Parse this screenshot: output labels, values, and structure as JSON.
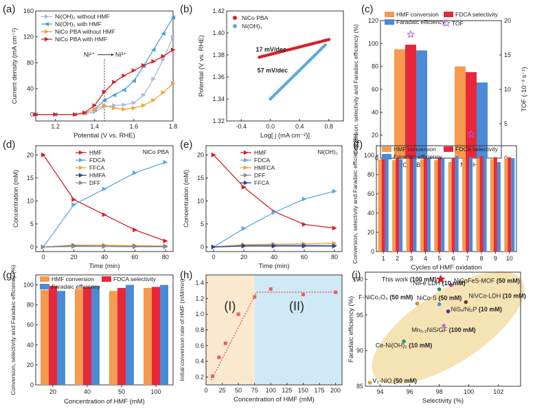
{
  "colors": {
    "conv": "#f59a4e",
    "sel": "#e8283a",
    "fe": "#4b8ad6",
    "red": "#d61f26",
    "blue": "#5aa9e0",
    "purple": "#b05bd0",
    "orange": "#f0a23a",
    "gray": "#7f8f9f",
    "navy": "#2b3f8f",
    "shade1": "#fbe9cf",
    "shade2": "#cfe9f6",
    "ellipse": "#f6e3b4"
  },
  "chart_data": [
    {
      "panel": "(a)",
      "type": "line",
      "xlabel": "Potential (V vs. RHE)",
      "ylabel": "Current density (mA cm⁻²)",
      "xlim": [
        1.1,
        1.8
      ],
      "ylim": [
        -10,
        160
      ],
      "xticks": [
        "1.2",
        "1.4",
        "1.6",
        "1.8"
      ],
      "yticks": [
        "0",
        "40",
        "80",
        "120",
        "160"
      ],
      "annotations": [
        "Ni²⁺",
        "Ni³⁺"
      ],
      "series": [
        {
          "name": "Ni(OH)₂ without HMF",
          "color": "#a9b6e6",
          "marker": ">",
          "x": [
            1.1,
            1.2,
            1.3,
            1.35,
            1.4,
            1.45,
            1.5,
            1.55,
            1.6,
            1.65,
            1.7,
            1.75,
            1.8
          ],
          "y": [
            0,
            0,
            0,
            1,
            4,
            12,
            14,
            15,
            18,
            30,
            55,
            85,
            120
          ]
        },
        {
          "name": "Ni(OH)₂ with HMF",
          "color": "#4aa0d8",
          "marker": "<",
          "x": [
            1.1,
            1.2,
            1.3,
            1.35,
            1.4,
            1.45,
            1.5,
            1.55,
            1.6,
            1.65,
            1.7,
            1.75,
            1.8
          ],
          "y": [
            0,
            0,
            0,
            2,
            8,
            22,
            30,
            38,
            52,
            75,
            100,
            125,
            150
          ]
        },
        {
          "name": "NiCo PBA without HMF",
          "color": "#f0a23a",
          "marker": ">",
          "x": [
            1.1,
            1.2,
            1.3,
            1.35,
            1.4,
            1.45,
            1.5,
            1.55,
            1.6,
            1.65,
            1.7,
            1.75,
            1.8
          ],
          "y": [
            0,
            0,
            0,
            2,
            8,
            14,
            10,
            8,
            10,
            14,
            22,
            34,
            48
          ]
        },
        {
          "name": "NiCo PBA with HMF",
          "color": "#d61f26",
          "marker": ">",
          "x": [
            1.1,
            1.2,
            1.3,
            1.35,
            1.4,
            1.45,
            1.5,
            1.55,
            1.6,
            1.65,
            1.7,
            1.75,
            1.8
          ],
          "y": [
            0,
            0,
            0,
            3,
            14,
            35,
            50,
            60,
            68,
            76,
            82,
            90,
            100
          ]
        }
      ]
    },
    {
      "panel": "(b)",
      "type": "line",
      "xlabel": "Log[ j (mA cm⁻²)]",
      "ylabel": "Potential (V vs. RHE)",
      "xlim": [
        -0.6,
        1.0
      ],
      "ylim": [
        1.32,
        1.42
      ],
      "xticks": [
        "-0.4",
        "0.0",
        "0.4",
        "0.8"
      ],
      "yticks": [
        "1.32",
        "1.34",
        "1.36",
        "1.38",
        "1.40",
        "1.42"
      ],
      "series": [
        {
          "name": "NiCo PBA",
          "color": "#d61f26",
          "label": "17 mV/dec",
          "x": [
            -0.15,
            0.8
          ],
          "y": [
            1.378,
            1.394
          ]
        },
        {
          "name": "Ni(OH)₂",
          "color": "#5aa9e0",
          "label": "57 mV/dec",
          "x": [
            0.0,
            0.75
          ],
          "y": [
            1.34,
            1.389
          ]
        }
      ]
    },
    {
      "panel": "(c)",
      "type": "bar",
      "categories": [
        "NiCo PBA",
        "Ni(OH)₂"
      ],
      "ylabel": "Conversion, selectivity and Faradaic efficiency (%)",
      "y2label": "TOF (·10⁻³ s⁻¹)",
      "ylim": [
        0,
        120
      ],
      "y2lim": [
        0,
        20
      ],
      "yticks": [
        "0",
        "20",
        "40",
        "60",
        "80",
        "100",
        "120"
      ],
      "y2ticks": [
        "0",
        "5",
        "10",
        "15",
        "20"
      ],
      "legend": [
        "HMF conversion",
        "FDCA selectivity",
        "Faradaic efficiency",
        "TOF"
      ],
      "series": [
        {
          "name": "HMF conversion",
          "values": [
            95,
            80
          ]
        },
        {
          "name": "FDCA selectivity",
          "values": [
            99,
            75
          ]
        },
        {
          "name": "Faradaic efficiency",
          "values": [
            94,
            66
          ]
        }
      ],
      "tof": [
        18,
        3.5
      ]
    },
    {
      "panel": "(d)",
      "type": "line",
      "title": "NiCo PBA",
      "xlabel": "Time (min)",
      "ylabel": "Concentration (mM)",
      "xlim": [
        -5,
        85
      ],
      "ylim": [
        -1,
        22
      ],
      "xticks": [
        "0",
        "20",
        "40",
        "60",
        "80"
      ],
      "yticks": [
        "0",
        "5",
        "10",
        "15",
        "20"
      ],
      "x": [
        0,
        20,
        40,
        60,
        80
      ],
      "series": [
        {
          "name": "HMF",
          "color": "#d61f26",
          "marker": ">",
          "values": [
            20,
            10.3,
            7,
            3.7,
            1.3
          ]
        },
        {
          "name": "FDCA",
          "color": "#5aa9e0",
          "marker": ">",
          "values": [
            0,
            9.2,
            12.6,
            16.1,
            18.4
          ]
        },
        {
          "name": "FFCA",
          "color": "#f0a23a",
          "marker": ">",
          "values": [
            0,
            0.4,
            0.4,
            0.3,
            0.2
          ]
        },
        {
          "name": "HMFA",
          "color": "#2b3f8f",
          "marker": ">",
          "values": [
            0,
            0.2,
            0.15,
            0.1,
            0.1
          ]
        },
        {
          "name": "DFF",
          "color": "#7f8f9f",
          "marker": ">",
          "values": [
            0,
            0.1,
            0.1,
            0.05,
            0.05
          ]
        }
      ]
    },
    {
      "panel": "(e)",
      "type": "line",
      "title": "Ni(OH)₂",
      "xlabel": "Time (min)",
      "ylabel": "Concentration (mM)",
      "xlim": [
        -5,
        85
      ],
      "ylim": [
        -1,
        22
      ],
      "xticks": [
        "0",
        "20",
        "40",
        "60",
        "80"
      ],
      "yticks": [
        "0",
        "5",
        "10",
        "15",
        "20"
      ],
      "x": [
        0,
        20,
        40,
        60,
        80
      ],
      "series": [
        {
          "name": "HMF",
          "color": "#d61f26",
          "marker": ">",
          "values": [
            20,
            13,
            7.7,
            4.9,
            4.1
          ]
        },
        {
          "name": "FDCA",
          "color": "#5aa9e0",
          "marker": ">",
          "values": [
            0,
            4,
            7.5,
            10.4,
            12.1
          ]
        },
        {
          "name": "HMFCA",
          "color": "#f0a23a",
          "marker": ">",
          "values": [
            0,
            0.5,
            0.6,
            0.7,
            0.8
          ]
        },
        {
          "name": "DFF",
          "color": "#7f8f9f",
          "marker": ">",
          "values": [
            0,
            0.3,
            0.4,
            0.4,
            0.3
          ]
        },
        {
          "name": "FFCA",
          "color": "#2b3f8f",
          "marker": ">",
          "values": [
            0,
            0.2,
            0.2,
            0.2,
            0.2
          ]
        }
      ]
    },
    {
      "panel": "(f)",
      "type": "bar",
      "categories": [
        "1",
        "2",
        "3",
        "4",
        "5",
        "6",
        "7",
        "8",
        "9",
        "10"
      ],
      "xlabel": "Cycles of  HMF oxidation",
      "ylabel": "Conversion, selectivity and Faradaic efficiency (%)",
      "ylim": [
        0,
        110
      ],
      "yticks": [
        "0",
        "20",
        "40",
        "60",
        "80",
        "100"
      ],
      "legend": [
        "HMF conversion",
        "FDCA selectivity",
        "Faradaic efficiency"
      ],
      "series": [
        {
          "name": "HMF conversion",
          "values": [
            96,
            95,
            98,
            96,
            95,
            93,
            97,
            97,
            96,
            97
          ]
        },
        {
          "name": "FDCA selectivity",
          "values": [
            98,
            97,
            100,
            98,
            98,
            97,
            99,
            99,
            98,
            98
          ]
        },
        {
          "name": "Faradaic efficiency",
          "values": [
            97,
            96,
            98,
            97,
            97,
            99,
            98,
            98,
            93,
            97
          ]
        }
      ]
    },
    {
      "panel": "(g)",
      "type": "bar",
      "categories": [
        "20",
        "40",
        "50",
        "100"
      ],
      "xlabel": "Concentration of HMF (mM)",
      "ylabel": "Conversion, selectivity and Faradaic efficiency (%)",
      "ylim": [
        0,
        110
      ],
      "yticks": [
        "0",
        "20",
        "40",
        "60",
        "80",
        "100"
      ],
      "legend": [
        "HMF conversion",
        "FDCA selectivity",
        "Faradaic efficiency"
      ],
      "series": [
        {
          "name": "HMF conversion",
          "values": [
            95,
            96,
            94,
            97
          ]
        },
        {
          "name": "FDCA selectivity",
          "values": [
            99,
            98,
            97,
            98
          ]
        },
        {
          "name": "Faradaic efficiency",
          "values": [
            94,
            99,
            100,
            100
          ]
        }
      ]
    },
    {
      "panel": "(h)",
      "type": "scatter",
      "xlabel": "Concentration of HMF (mM)",
      "ylabel": "Initial conversion rate of HMF (mM/min)",
      "xlim": [
        0,
        210
      ],
      "ylim": [
        0.1,
        1.5
      ],
      "xticks": [
        "0",
        "25",
        "50",
        "75",
        "100",
        "125",
        "150",
        "175",
        "200"
      ],
      "yticks": [
        "0.2",
        "0.4",
        "0.6",
        "0.8",
        "1.0",
        "1.2",
        "1.4"
      ],
      "regions": [
        "(I)",
        "(II)"
      ],
      "boundary_x": 75,
      "x": [
        10,
        20,
        30,
        50,
        75,
        100,
        150,
        200
      ],
      "y": [
        0.21,
        0.45,
        0.63,
        1.0,
        1.22,
        1.32,
        1.25,
        1.28
      ]
    },
    {
      "panel": "(i)",
      "type": "scatter",
      "xlabel": "Selectivity (%)",
      "ylabel": "Faradaic efficiency (%)",
      "xlim": [
        93,
        103.5
      ],
      "ylim": [
        85,
        101
      ],
      "xticks": [
        "94",
        "96",
        "98",
        "100",
        "102"
      ],
      "yticks": [
        "85",
        "90",
        "95",
        "100"
      ],
      "points": [
        {
          "label": "This work",
          "conc": "(100 mM)",
          "x": 98.1,
          "y": 100,
          "color": "#d61f26"
        },
        {
          "label": "NiCoFeS-MOF",
          "conc": "(50 mM)",
          "x": 98.8,
          "y": 99.2,
          "color": "#b030b0"
        },
        {
          "label": "NiFe LDH",
          "conc": "(10 mM)",
          "x": 98.0,
          "y": 98.6,
          "color": "#2e8b57"
        },
        {
          "label": "NiVCo-LDH",
          "conc": "(10 mM)",
          "x": 99.8,
          "y": 96.8,
          "color": "#6b3a1f"
        },
        {
          "label": "F-NiCo₂O₄",
          "conc": "(50 mM)",
          "x": 96.5,
          "y": 96.6,
          "color": "#e08a1a"
        },
        {
          "label": "NiCo-S",
          "conc": "(50 mM)",
          "x": 98.0,
          "y": 96.5,
          "color": "#4a90c8"
        },
        {
          "label": "NiSₓ/Ni₂P",
          "conc": "(10 mM)",
          "x": 98.6,
          "y": 95.5,
          "color": "#3a3a8a"
        },
        {
          "label": "Mn₀.₂NiS/GF",
          "conc": "(100 mM)",
          "x": 98.3,
          "y": 93.5,
          "color": "#c070d8"
        },
        {
          "label": "Ce-Ni(OH)₂",
          "conc": "(10 mM)",
          "x": 95.6,
          "y": 91.3,
          "color": "#2a8f8f"
        },
        {
          "label": "V₂-NiO",
          "conc": "(50 mM)",
          "x": 93.3,
          "y": 85.5,
          "color": "#e0a020"
        }
      ]
    }
  ]
}
